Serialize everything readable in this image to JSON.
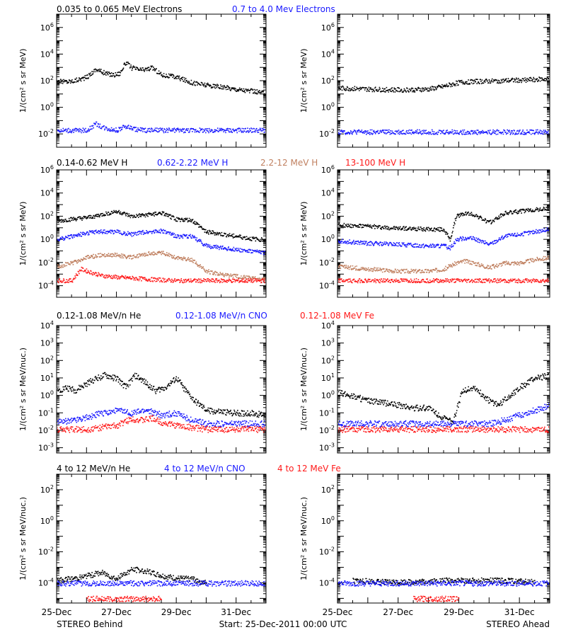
{
  "colors": {
    "black": "#000000",
    "blue": "#1a1aff",
    "tan": "#c08060",
    "red": "#ff1a1a"
  },
  "x_tick_labels": [
    "25-Dec",
    "27-Dec",
    "29-Dec",
    "31-Dec"
  ],
  "footer": {
    "left": "STEREO Behind",
    "center": "Start: 25-Dec-2011 00:00 UTC",
    "right": "STEREO Ahead"
  },
  "chart_data": [
    {
      "type": "scatter",
      "title_series": [
        "0.035 to 0.065 MeV Electrons",
        "0.7 to 4.0 Mev Electrons"
      ],
      "ylabel": "1/(cm² s sr MeV)",
      "y_scale": "log",
      "ylim": [
        0.001,
        10000000
      ],
      "y_tick_exponents": [
        -2,
        0,
        2,
        4,
        6
      ],
      "xlim_days": [
        0,
        7
      ],
      "panels": [
        {
          "spacecraft": "STEREO Behind",
          "series": [
            {
              "name": "0.035 to 0.065 MeV Electrons",
              "color": "black",
              "x": [
                0,
                0.5,
                1,
                1.3,
                1.6,
                1.9,
                2.1,
                2.3,
                2.5,
                2.8,
                3.0,
                3.2,
                3.5,
                4.0,
                4.5,
                5.0,
                5.5,
                6.0,
                6.5,
                7.0
              ],
              "y": [
                90,
                100,
                200,
                800,
                400,
                300,
                400,
                2500,
                1000,
                700,
                800,
                1000,
                300,
                200,
                80,
                50,
                35,
                25,
                18,
                12
              ]
            },
            {
              "name": "0.7 to 4.0 Mev Electrons",
              "color": "blue",
              "x": [
                0,
                0.5,
                1,
                1.3,
                1.6,
                2.0,
                2.3,
                2.6,
                3.0,
                4.0,
                5.0,
                6.0,
                7.0
              ],
              "y": [
                0.02,
                0.02,
                0.02,
                0.06,
                0.03,
                0.02,
                0.04,
                0.025,
                0.02,
                0.02,
                0.02,
                0.02,
                0.02
              ]
            }
          ]
        },
        {
          "spacecraft": "STEREO Ahead",
          "series": [
            {
              "name": "0.035 to 0.065 MeV Electrons",
              "color": "black",
              "x": [
                0,
                1,
                2,
                3,
                3.5,
                4.0,
                4.3,
                5.0,
                6.0,
                7.0
              ],
              "y": [
                30,
                25,
                22,
                25,
                40,
                80,
                90,
                100,
                120,
                150
              ]
            },
            {
              "name": "0.7 to 4.0 Mev Electrons",
              "color": "blue",
              "x": [
                0,
                1,
                2,
                3,
                4,
                5,
                6,
                7
              ],
              "y": [
                0.015,
                0.015,
                0.015,
                0.015,
                0.015,
                0.015,
                0.015,
                0.015
              ]
            }
          ]
        }
      ]
    },
    {
      "type": "scatter",
      "title_series": [
        "0.14-0.62 MeV H",
        "0.62-2.22 MeV H",
        "2.2-12 MeV H",
        "13-100 MeV H"
      ],
      "ylabel": "1/(cm² s sr MeV)",
      "y_scale": "log",
      "ylim": [
        1e-05,
        1000000
      ],
      "y_tick_exponents": [
        -4,
        -2,
        0,
        2,
        4,
        6
      ],
      "xlim_days": [
        0,
        7
      ],
      "panels": [
        {
          "spacecraft": "STEREO Behind",
          "series": [
            {
              "name": "0.14-0.62 MeV H",
              "color": "black",
              "x": [
                0,
                0.5,
                1,
                1.5,
                2.0,
                2.5,
                3.0,
                3.5,
                4.0,
                4.5,
                5.0,
                5.5,
                6.0,
                6.5,
                7.0
              ],
              "y": [
                40,
                60,
                80,
                150,
                300,
                100,
                150,
                200,
                60,
                50,
                5,
                3,
                2,
                1.2,
                1
              ]
            },
            {
              "name": "0.62-2.22 MeV H",
              "color": "blue",
              "x": [
                0,
                0.5,
                1,
                1.5,
                2.0,
                2.5,
                3.0,
                3.5,
                4.0,
                4.5,
                5.0,
                5.5,
                6.0,
                6.5,
                7.0
              ],
              "y": [
                1,
                2,
                4,
                5,
                5,
                3,
                5,
                6,
                2,
                2,
                0.3,
                0.2,
                0.15,
                0.1,
                0.08
              ]
            },
            {
              "name": "2.2-12 MeV H",
              "color": "tan",
              "x": [
                0,
                0.5,
                1,
                1.5,
                2.0,
                2.5,
                3.0,
                3.5,
                4.0,
                4.5,
                5.0,
                5.5,
                6.0,
                6.5,
                7.0
              ],
              "y": [
                0.005,
                0.01,
                0.03,
                0.05,
                0.05,
                0.03,
                0.06,
                0.08,
                0.03,
                0.02,
                0.002,
                0.001,
                0.0007,
                0.0005,
                0.0004
              ]
            },
            {
              "name": "13-100 MeV H",
              "color": "red",
              "x": [
                0,
                0.5,
                0.8,
                1.0,
                1.5,
                2.0,
                2.5,
                3.0,
                4.0,
                5.0,
                6.0,
                7.0
              ],
              "y": [
                0.0003,
                0.0003,
                0.003,
                0.002,
                0.0008,
                0.0006,
                0.0005,
                0.0004,
                0.0003,
                0.0003,
                0.0003,
                0.0003
              ]
            }
          ]
        },
        {
          "spacecraft": "STEREO Ahead",
          "series": [
            {
              "name": "0.14-0.62 MeV H",
              "color": "black",
              "x": [
                0,
                1,
                2,
                3,
                3.5,
                3.7,
                3.9,
                4.2,
                4.5,
                5.0,
                5.5,
                6.0,
                6.5,
                7.0
              ],
              "y": [
                20,
                15,
                10,
                8,
                8,
                1,
                100,
                200,
                150,
                30,
                200,
                300,
                400,
                500
              ]
            },
            {
              "name": "0.62-2.22 MeV H",
              "color": "blue",
              "x": [
                0,
                1,
                2,
                3,
                3.5,
                3.7,
                3.9,
                4.2,
                4.5,
                5.0,
                5.5,
                6.0,
                6.5,
                7.0
              ],
              "y": [
                0.8,
                0.5,
                0.4,
                0.3,
                0.3,
                0.2,
                1,
                1.5,
                1.2,
                0.4,
                2,
                3,
                5,
                8
              ]
            },
            {
              "name": "2.2-12 MeV H",
              "color": "tan",
              "x": [
                0,
                1,
                2,
                3,
                3.5,
                3.9,
                4.2,
                4.5,
                5.0,
                5.5,
                6.0,
                6.5,
                7.0
              ],
              "y": [
                0.005,
                0.003,
                0.002,
                0.002,
                0.003,
                0.01,
                0.015,
                0.01,
                0.004,
                0.01,
                0.01,
                0.02,
                0.03
              ]
            },
            {
              "name": "13-100 MeV H",
              "color": "red",
              "x": [
                0,
                1,
                2,
                3,
                4,
                5,
                6,
                7
              ],
              "y": [
                0.0003,
                0.0003,
                0.0003,
                0.0003,
                0.0003,
                0.0003,
                0.0003,
                0.0003
              ]
            }
          ]
        }
      ]
    },
    {
      "type": "scatter",
      "title_series": [
        "0.12-1.08 MeV/n He",
        "0.12-1.08 MeV/n CNO",
        "0.12-1.08 MeV Fe"
      ],
      "ylabel": "1/(cm² s sr MeV/nuc.)",
      "y_scale": "log",
      "ylim": [
        0.0005,
        10000
      ],
      "y_tick_exponents": [
        -3,
        -2,
        -1,
        0,
        1,
        2,
        3,
        4
      ],
      "xlim_days": [
        0,
        7
      ],
      "panels": [
        {
          "spacecraft": "STEREO Behind",
          "series": [
            {
              "name": "0.12-1.08 MeV/n He",
              "color": "black",
              "x": [
                0,
                0.3,
                0.6,
                1.0,
                1.3,
                1.6,
                2.0,
                2.3,
                2.6,
                3.0,
                3.3,
                3.6,
                4.0,
                4.3,
                4.6,
                5.0,
                5.5,
                6.0,
                6.5,
                7.0
              ],
              "y": [
                2,
                3,
                2,
                5,
                10,
                15,
                10,
                3,
                15,
                5,
                2,
                3,
                10,
                2,
                0.5,
                0.15,
                0.12,
                0.1,
                0.1,
                0.08
              ]
            },
            {
              "name": "0.12-1.08 MeV/n CNO",
              "color": "blue",
              "x": [
                0,
                0.5,
                1.0,
                1.5,
                2.0,
                2.5,
                3.0,
                3.5,
                4.0,
                4.5,
                5.0,
                6.0,
                7.0
              ],
              "y": [
                0.03,
                0.04,
                0.06,
                0.1,
                0.15,
                0.1,
                0.15,
                0.08,
                0.1,
                0.04,
                0.025,
                0.025,
                0.025
              ]
            },
            {
              "name": "0.12-1.08 MeV Fe",
              "color": "red",
              "x": [
                0,
                1,
                2.0,
                2.5,
                2.8,
                3.2,
                3.5,
                4.0,
                5.0,
                6.0,
                7.0
              ],
              "y": [
                0.012,
                0.012,
                0.02,
                0.05,
                0.04,
                0.05,
                0.03,
                0.02,
                0.012,
                0.012,
                0.012
              ]
            }
          ]
        },
        {
          "spacecraft": "STEREO Ahead",
          "series": [
            {
              "name": "0.12-1.08 MeV/n He",
              "color": "black",
              "x": [
                0,
                0.5,
                1.0,
                1.5,
                2.0,
                2.5,
                3.0,
                3.5,
                3.8,
                4.1,
                4.5,
                5.0,
                5.3,
                5.6,
                6.0,
                6.5,
                7.0
              ],
              "y": [
                1.5,
                1,
                0.5,
                0.4,
                0.3,
                0.2,
                0.2,
                0.05,
                0.03,
                2,
                3,
                0.5,
                0.3,
                0.8,
                3,
                10,
                15
              ]
            },
            {
              "name": "0.12-1.08 MeV/n CNO",
              "color": "blue",
              "x": [
                0,
                1,
                2,
                3,
                4,
                5,
                5.5,
                6.0,
                6.5,
                7.0
              ],
              "y": [
                0.025,
                0.025,
                0.025,
                0.025,
                0.025,
                0.025,
                0.04,
                0.08,
                0.15,
                0.3
              ]
            },
            {
              "name": "0.12-1.08 MeV Fe",
              "color": "red",
              "x": [
                0,
                1,
                2,
                3,
                4,
                5,
                6,
                7
              ],
              "y": [
                0.012,
                0.012,
                0.012,
                0.012,
                0.012,
                0.012,
                0.012,
                0.012
              ]
            }
          ]
        }
      ]
    },
    {
      "type": "scatter",
      "title_series": [
        "4 to 12 MeV/n He",
        "4 to 12 MeV/n CNO",
        "4 to 12 MeV Fe"
      ],
      "ylabel": "1/(cm² s sr MeV/nuc.)",
      "y_scale": "log",
      "ylim": [
        5e-06,
        1000
      ],
      "y_tick_exponents": [
        -4,
        -2,
        0,
        2
      ],
      "xlim_days": [
        0,
        7
      ],
      "panels": [
        {
          "spacecraft": "STEREO Behind",
          "series": [
            {
              "name": "4 to 12 MeV/n He",
              "color": "black",
              "x": [
                0,
                0.5,
                1.0,
                1.5,
                2.0,
                2.5,
                3.0,
                3.5,
                4.0,
                4.5,
                5.0
              ],
              "y": [
                0.00015,
                0.0002,
                0.0003,
                0.0005,
                0.0002,
                0.0008,
                0.0006,
                0.0003,
                0.0002,
                0.0002,
                0.0001
              ]
            },
            {
              "name": "4 to 12 MeV/n CNO",
              "color": "blue",
              "x": [
                0,
                1,
                2,
                3,
                4,
                5,
                6,
                7
              ],
              "y": [
                0.0001,
                0.0001,
                0.0001,
                0.0001,
                0.0001,
                0.0001,
                0.0001,
                0.0001
              ]
            },
            {
              "name": "4 to 12 MeV Fe",
              "color": "red",
              "x": [
                1.0,
                1.5,
                2.5,
                3.5
              ],
              "y": [
                1e-05,
                1e-05,
                1e-05,
                1e-05
              ]
            }
          ]
        },
        {
          "spacecraft": "STEREO Ahead",
          "series": [
            {
              "name": "4 to 12 MeV/n He",
              "color": "black",
              "x": [
                0.5,
                1.5,
                2.5,
                3.5,
                4.5,
                5.5,
                6.5
              ],
              "y": [
                0.00015,
                0.00012,
                0.00012,
                0.00015,
                0.00015,
                0.00015,
                0.00012
              ]
            },
            {
              "name": "4 to 12 MeV/n CNO",
              "color": "blue",
              "x": [
                0,
                1,
                2,
                3,
                4,
                5,
                6,
                7
              ],
              "y": [
                0.0001,
                0.0001,
                0.0001,
                0.0001,
                0.0001,
                0.0001,
                0.0001,
                0.0001
              ]
            },
            {
              "name": "4 to 12 MeV Fe",
              "color": "red",
              "x": [
                2.5,
                4.0
              ],
              "y": [
                1e-05,
                1e-05
              ]
            }
          ]
        }
      ]
    }
  ]
}
